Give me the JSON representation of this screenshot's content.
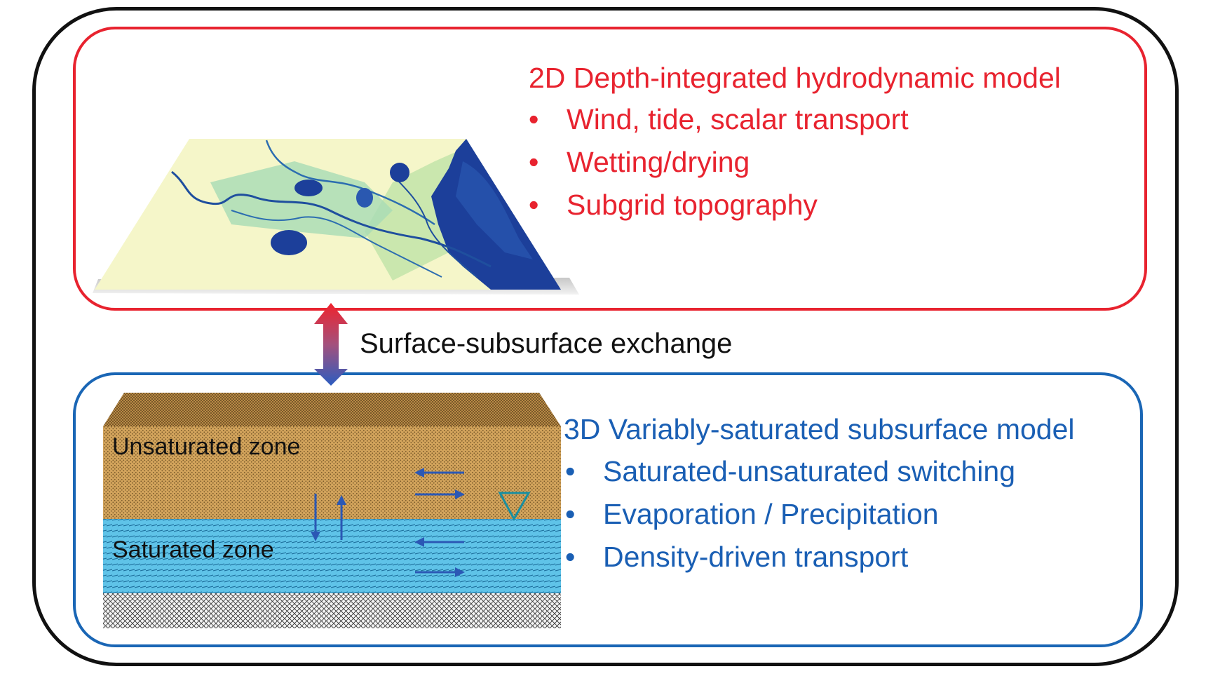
{
  "exchange": {
    "label": "Surface-subsurface exchange"
  },
  "surface_model": {
    "title": "2D Depth-integrated hydrodynamic model",
    "bullets": [
      "Wind, tide, scalar transport",
      "Wetting/drying",
      "Subgrid topography"
    ],
    "color": "#e8232f"
  },
  "subsurface_model": {
    "title": "3D Variably-saturated subsurface model",
    "bullets": [
      "Saturated-unsaturated switching",
      "Evaporation / Precipitation",
      "Density-driven transport"
    ],
    "color": "#1a5fb4"
  },
  "soil_block": {
    "unsaturated_label": "Unsaturated zone",
    "saturated_label": "Saturated zone",
    "unsaturated_color": "#d3a45c",
    "saturated_color": "#5fc3e8"
  },
  "bullet_symbol": "•"
}
